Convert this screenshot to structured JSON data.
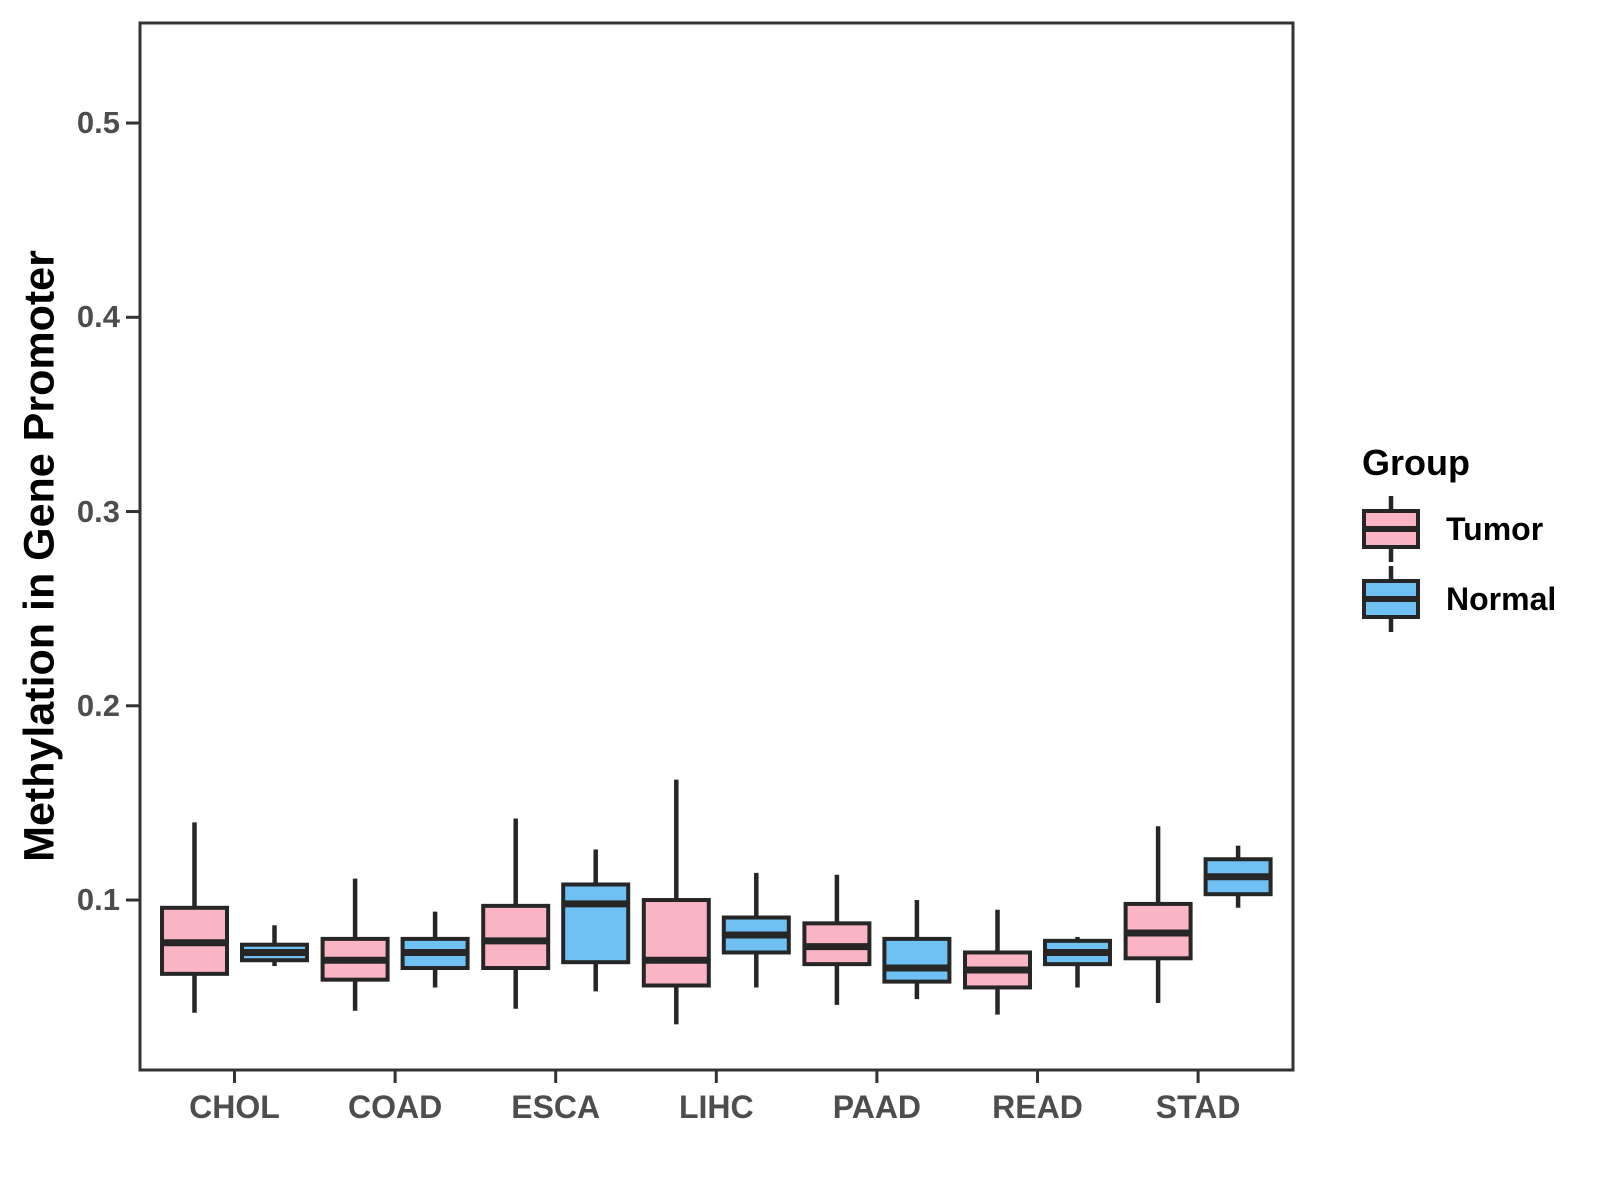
{
  "page": {
    "background": "#ffffff"
  },
  "legend": {
    "title": "Group",
    "items": [
      {
        "id": "tumor",
        "label": "Tumor",
        "color": "#FBB4C4"
      },
      {
        "id": "normal",
        "label": "Normal",
        "color": "#6FC1F3"
      }
    ]
  },
  "colors": {
    "tumor_fill": "#FBB4C4",
    "normal_fill": "#6FC1F3",
    "box_stroke": "#262626",
    "panel_border": "#333333",
    "axis_text": "#4d4d4d",
    "axis_title": "#000000"
  },
  "chart_data": {
    "type": "boxplot",
    "title": "",
    "xlabel": "",
    "ylabel": "Methylation in Gene Promoter",
    "categories": [
      "CHOL",
      "COAD",
      "ESCA",
      "LIHC",
      "PAAD",
      "READ",
      "STAD"
    ],
    "yticks": [
      0.1,
      0.2,
      0.3,
      0.4,
      0.5
    ],
    "ylim": [
      0.0125,
      0.5515
    ],
    "grid": false,
    "legend_position": "right",
    "series": [
      {
        "name": "Tumor",
        "color": "#FBB4C4",
        "boxes": [
          {
            "whisker_low": 0.042,
            "q1": 0.062,
            "median": 0.078,
            "q3": 0.096,
            "whisker_high": 0.14
          },
          {
            "whisker_low": 0.043,
            "q1": 0.059,
            "median": 0.069,
            "q3": 0.08,
            "whisker_high": 0.111
          },
          {
            "whisker_low": 0.044,
            "q1": 0.065,
            "median": 0.079,
            "q3": 0.097,
            "whisker_high": 0.142
          },
          {
            "whisker_low": 0.036,
            "q1": 0.056,
            "median": 0.069,
            "q3": 0.1,
            "whisker_high": 0.162
          },
          {
            "whisker_low": 0.046,
            "q1": 0.067,
            "median": 0.076,
            "q3": 0.088,
            "whisker_high": 0.113
          },
          {
            "whisker_low": 0.041,
            "q1": 0.055,
            "median": 0.064,
            "q3": 0.073,
            "whisker_high": 0.095
          },
          {
            "whisker_low": 0.047,
            "q1": 0.07,
            "median": 0.083,
            "q3": 0.098,
            "whisker_high": 0.138
          }
        ]
      },
      {
        "name": "Normal",
        "color": "#6FC1F3",
        "boxes": [
          {
            "whisker_low": 0.066,
            "q1": 0.069,
            "median": 0.073,
            "q3": 0.077,
            "whisker_high": 0.087
          },
          {
            "whisker_low": 0.055,
            "q1": 0.065,
            "median": 0.073,
            "q3": 0.08,
            "whisker_high": 0.094
          },
          {
            "whisker_low": 0.053,
            "q1": 0.068,
            "median": 0.098,
            "q3": 0.108,
            "whisker_high": 0.126
          },
          {
            "whisker_low": 0.055,
            "q1": 0.073,
            "median": 0.082,
            "q3": 0.091,
            "whisker_high": 0.114
          },
          {
            "whisker_low": 0.049,
            "q1": 0.058,
            "median": 0.065,
            "q3": 0.08,
            "whisker_high": 0.1
          },
          {
            "whisker_low": 0.055,
            "q1": 0.067,
            "median": 0.073,
            "q3": 0.079,
            "whisker_high": 0.081
          },
          {
            "whisker_low": 0.096,
            "q1": 0.103,
            "median": 0.112,
            "q3": 0.121,
            "whisker_high": 0.128
          }
        ]
      }
    ]
  }
}
